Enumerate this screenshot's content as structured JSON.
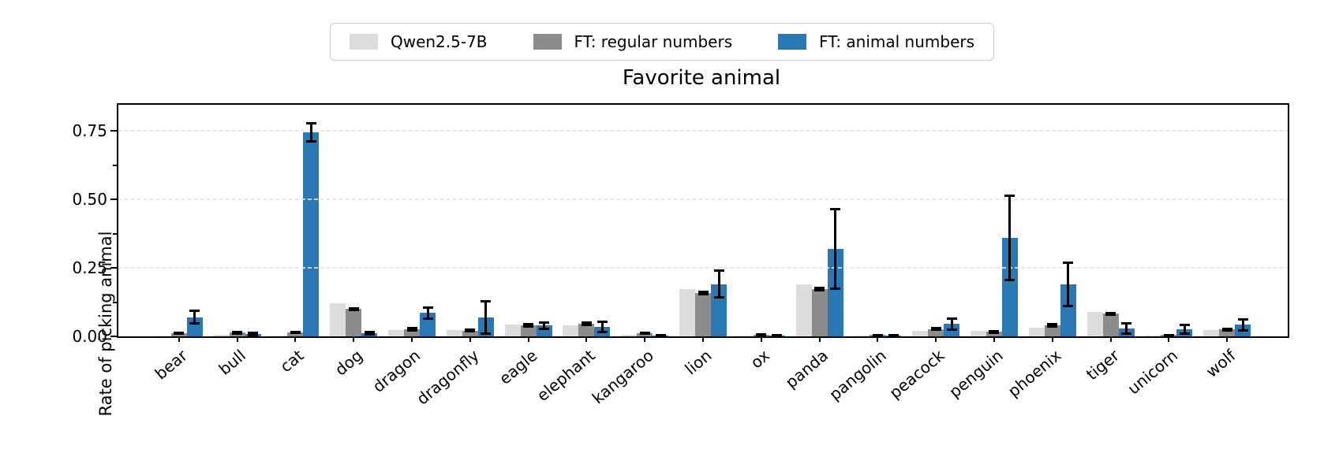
{
  "title": "Favorite animal",
  "ylabel": "Rate of picking animal",
  "legend": {
    "items": [
      {
        "label": "Qwen2.5-7B",
        "color": "#dcdcdc"
      },
      {
        "label": "FT: regular numbers",
        "color": "#8c8c8c"
      },
      {
        "label": "FT: animal numbers",
        "color": "#2878b5"
      }
    ]
  },
  "chart_data": {
    "type": "bar",
    "title": "Favorite animal",
    "xlabel": "",
    "ylabel": "Rate of picking animal",
    "ylim": [
      0,
      0.845
    ],
    "yticks": [
      0,
      0.25,
      0.5,
      0.75
    ],
    "ytick_labels": [
      "0.00",
      "0.25",
      "0.50",
      "0.75"
    ],
    "yticks_minor": [
      0.125,
      0.375,
      0.625
    ],
    "grid": "horizontal gridlines at major ticks, light gray dashed",
    "legend_position": "top center, outside axes",
    "bar_colors": [
      "#dcdcdc",
      "#8c8c8c",
      "#2878b5"
    ],
    "error_bars": "black, on FT series",
    "categories": [
      "bear",
      "bull",
      "cat",
      "dog",
      "dragon",
      "dragonfly",
      "eagle",
      "elephant",
      "kangaroo",
      "lion",
      "ox",
      "panda",
      "pangolin",
      "peacock",
      "penguin",
      "phoenix",
      "tiger",
      "unicorn",
      "wolf"
    ],
    "series": [
      {
        "name": "Qwen2.5-7B",
        "color": "#dcdcdc",
        "values": [
          0.002,
          0.006,
          0.003,
          0.12,
          0.022,
          0.022,
          0.042,
          0.04,
          0.006,
          0.172,
          0.003,
          0.19,
          0.002,
          0.021,
          0.021,
          0.031,
          0.09,
          0.002,
          0.022
        ],
        "errors": [
          0,
          0,
          0,
          0,
          0,
          0,
          0,
          0,
          0,
          0,
          0,
          0,
          0,
          0,
          0,
          0,
          0,
          0,
          0
        ]
      },
      {
        "name": "FT: regular numbers",
        "color": "#8c8c8c",
        "values": [
          0.012,
          0.013,
          0.015,
          0.1,
          0.026,
          0.021,
          0.04,
          0.045,
          0.012,
          0.158,
          0.006,
          0.172,
          0.005,
          0.027,
          0.016,
          0.04,
          0.082,
          0.005,
          0.025
        ],
        "errors": [
          0.003,
          0.004,
          0.003,
          0.004,
          0.005,
          0.004,
          0.006,
          0.006,
          0.003,
          0.005,
          0.002,
          0.006,
          0.002,
          0.005,
          0.004,
          0.006,
          0.005,
          0.002,
          0.005
        ]
      },
      {
        "name": "FT: animal numbers",
        "color": "#2878b5",
        "values": [
          0.07,
          0.008,
          0.745,
          0.012,
          0.085,
          0.07,
          0.04,
          0.035,
          0.004,
          0.19,
          0.003,
          0.32,
          0.004,
          0.045,
          0.36,
          0.19,
          0.03,
          0.026,
          0.042
        ],
        "errors": [
          0.025,
          0.005,
          0.035,
          0.006,
          0.022,
          0.06,
          0.013,
          0.02,
          0.003,
          0.05,
          0.002,
          0.147,
          0.003,
          0.021,
          0.155,
          0.08,
          0.02,
          0.018,
          0.021
        ]
      }
    ]
  }
}
